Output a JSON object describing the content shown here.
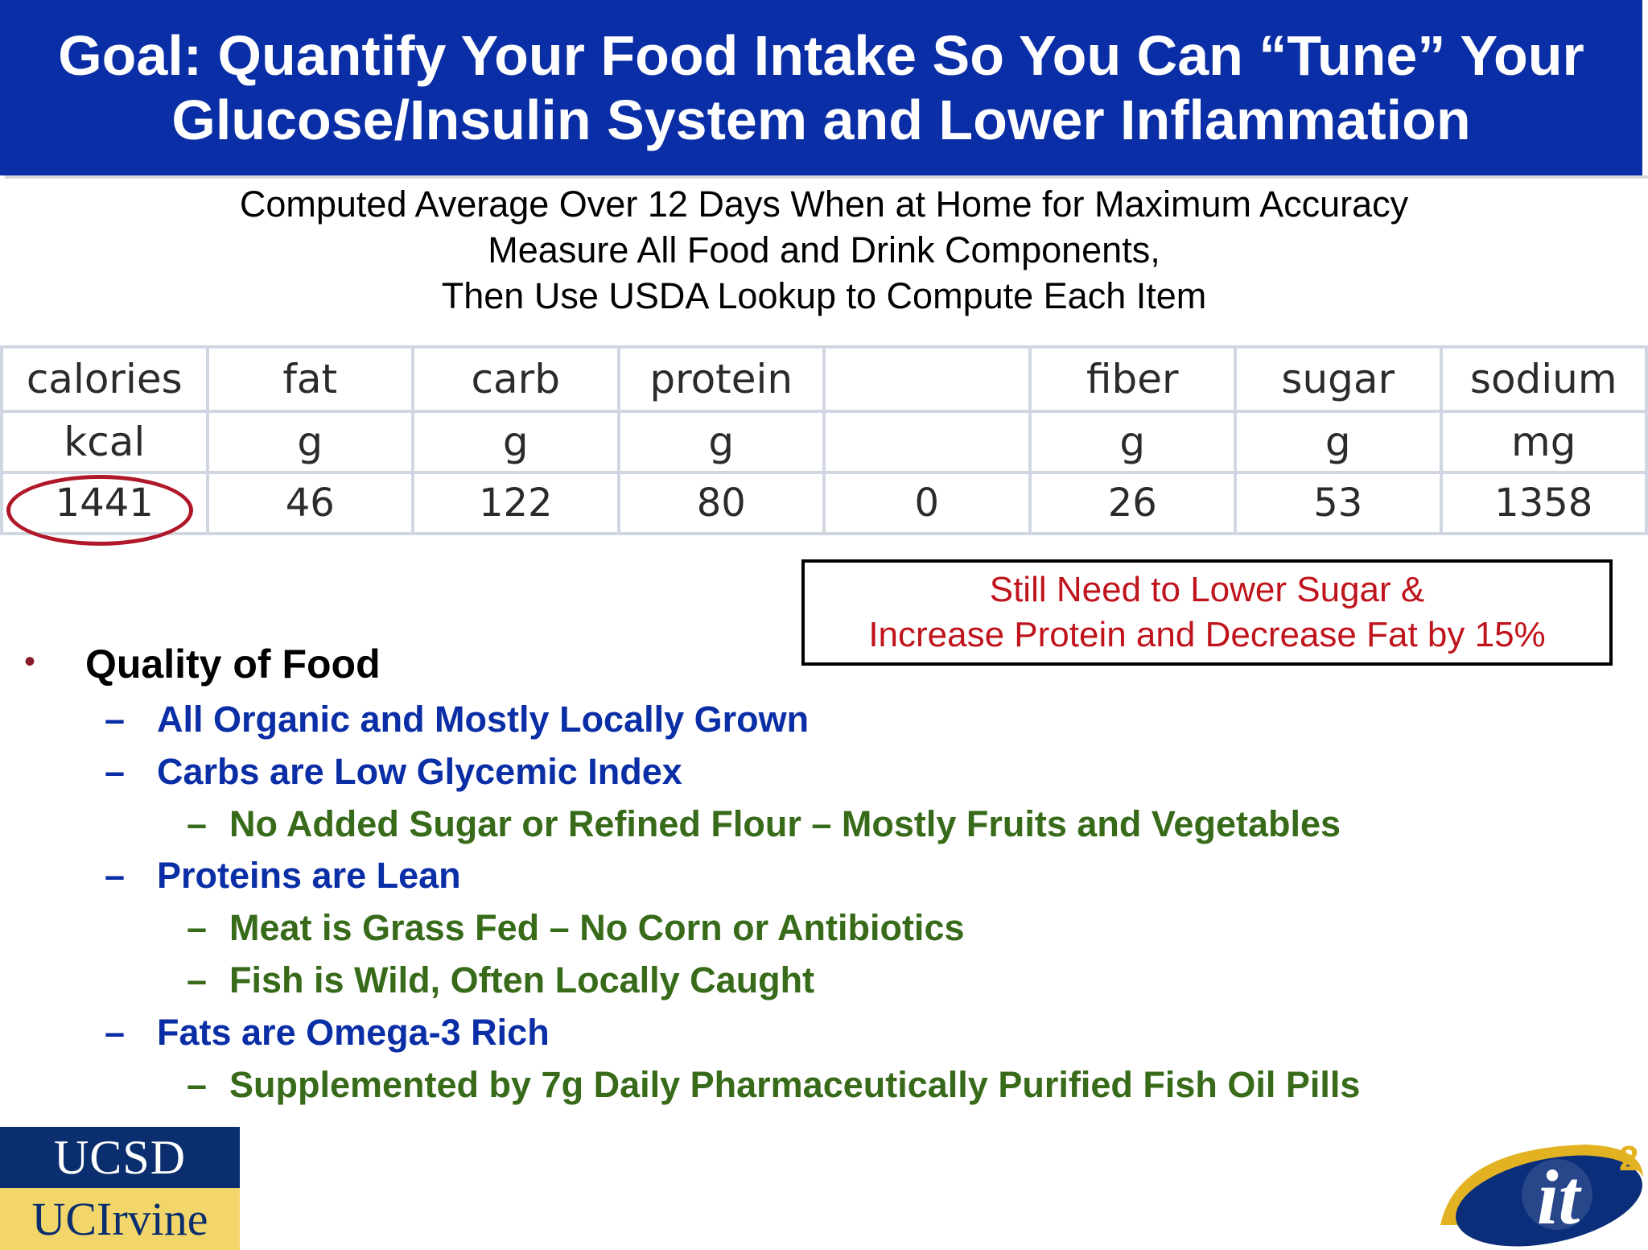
{
  "header": {
    "title_line1": "Goal: Quantify Your Food Intake So You Can “Tune” Your",
    "title_line2": "Glucose/Insulin System and Lower Inflammation"
  },
  "subtitle": {
    "line1": "Computed Average Over 12 Days When at Home for Maximum Accuracy",
    "line2": "Measure All Food and Drink Components,",
    "line3": "Then Use USDA Lookup to Compute Each Item"
  },
  "nutrition_table": {
    "columns": [
      {
        "name": "calories",
        "unit": "kcal",
        "value": "1441"
      },
      {
        "name": "fat",
        "unit": "g",
        "value": "46"
      },
      {
        "name": "carb",
        "unit": "g",
        "value": "122"
      },
      {
        "name": "protein",
        "unit": "g",
        "value": "80"
      },
      {
        "name": "",
        "unit": "",
        "value": "0"
      },
      {
        "name": "fiber",
        "unit": "g",
        "value": "26"
      },
      {
        "name": "sugar",
        "unit": "g",
        "value": "53"
      },
      {
        "name": "sodium",
        "unit": "mg",
        "value": "1358"
      }
    ]
  },
  "callout": {
    "line1": "Still Need to Lower Sugar &",
    "line2": "Increase Protein and Decrease Fat by 15%"
  },
  "bullets": {
    "marker": "•",
    "heading": "Quality of Food",
    "dash": "–",
    "items": [
      {
        "level": 2,
        "text": "All Organic and Mostly Locally Grown"
      },
      {
        "level": 2,
        "text": "Carbs are Low Glycemic Index"
      },
      {
        "level": 3,
        "text": "No Added Sugar or Refined Flour – Mostly Fruits and Vegetables"
      },
      {
        "level": 2,
        "text": "Proteins are Lean"
      },
      {
        "level": 3,
        "text": "Meat is Grass Fed – No Corn or Antibiotics"
      },
      {
        "level": 3,
        "text": "Fish is Wild, Often Locally Caught"
      },
      {
        "level": 2,
        "text": "Fats are Omega-3 Rich"
      },
      {
        "level": 3,
        "text": "Supplemented by 7g Daily Pharmaceutically Purified Fish Oil Pills"
      }
    ]
  },
  "logos": {
    "ucsd": "UCSD",
    "uci": "UCIrvine",
    "it2_text": "it",
    "it2_superscript": "2"
  },
  "colors": {
    "title_bg": "#0a2ea6",
    "highlight_circle": "#b0182a",
    "callout_text": "#c0141c",
    "level2_text": "#0a2ea6",
    "level3_text": "#376b1a"
  }
}
